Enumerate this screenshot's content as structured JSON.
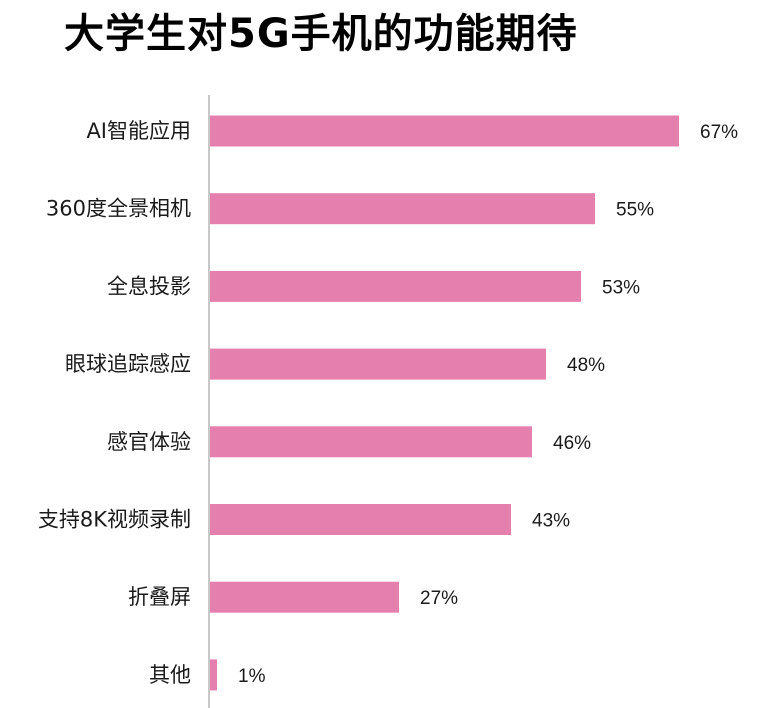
{
  "chart_data": {
    "type": "bar",
    "orientation": "horizontal",
    "title": "大学生对5G手机的功能期待",
    "categories": [
      "AI智能应用",
      "360度全景相机",
      "全息投影",
      "眼球追踪感应",
      "感官体验",
      "支持8K视频录制",
      "折叠屏",
      "其他"
    ],
    "values": [
      67,
      55,
      53,
      48,
      46,
      43,
      27,
      1
    ],
    "value_labels": [
      "67%",
      "55%",
      "53%",
      "48%",
      "46%",
      "43%",
      "27%",
      "1%"
    ],
    "unit": "%",
    "xlim": [
      0,
      100
    ],
    "grid": false,
    "legend": "none",
    "colors": {
      "bar": "#E57FAD",
      "axis": "#C8C8C8"
    }
  }
}
